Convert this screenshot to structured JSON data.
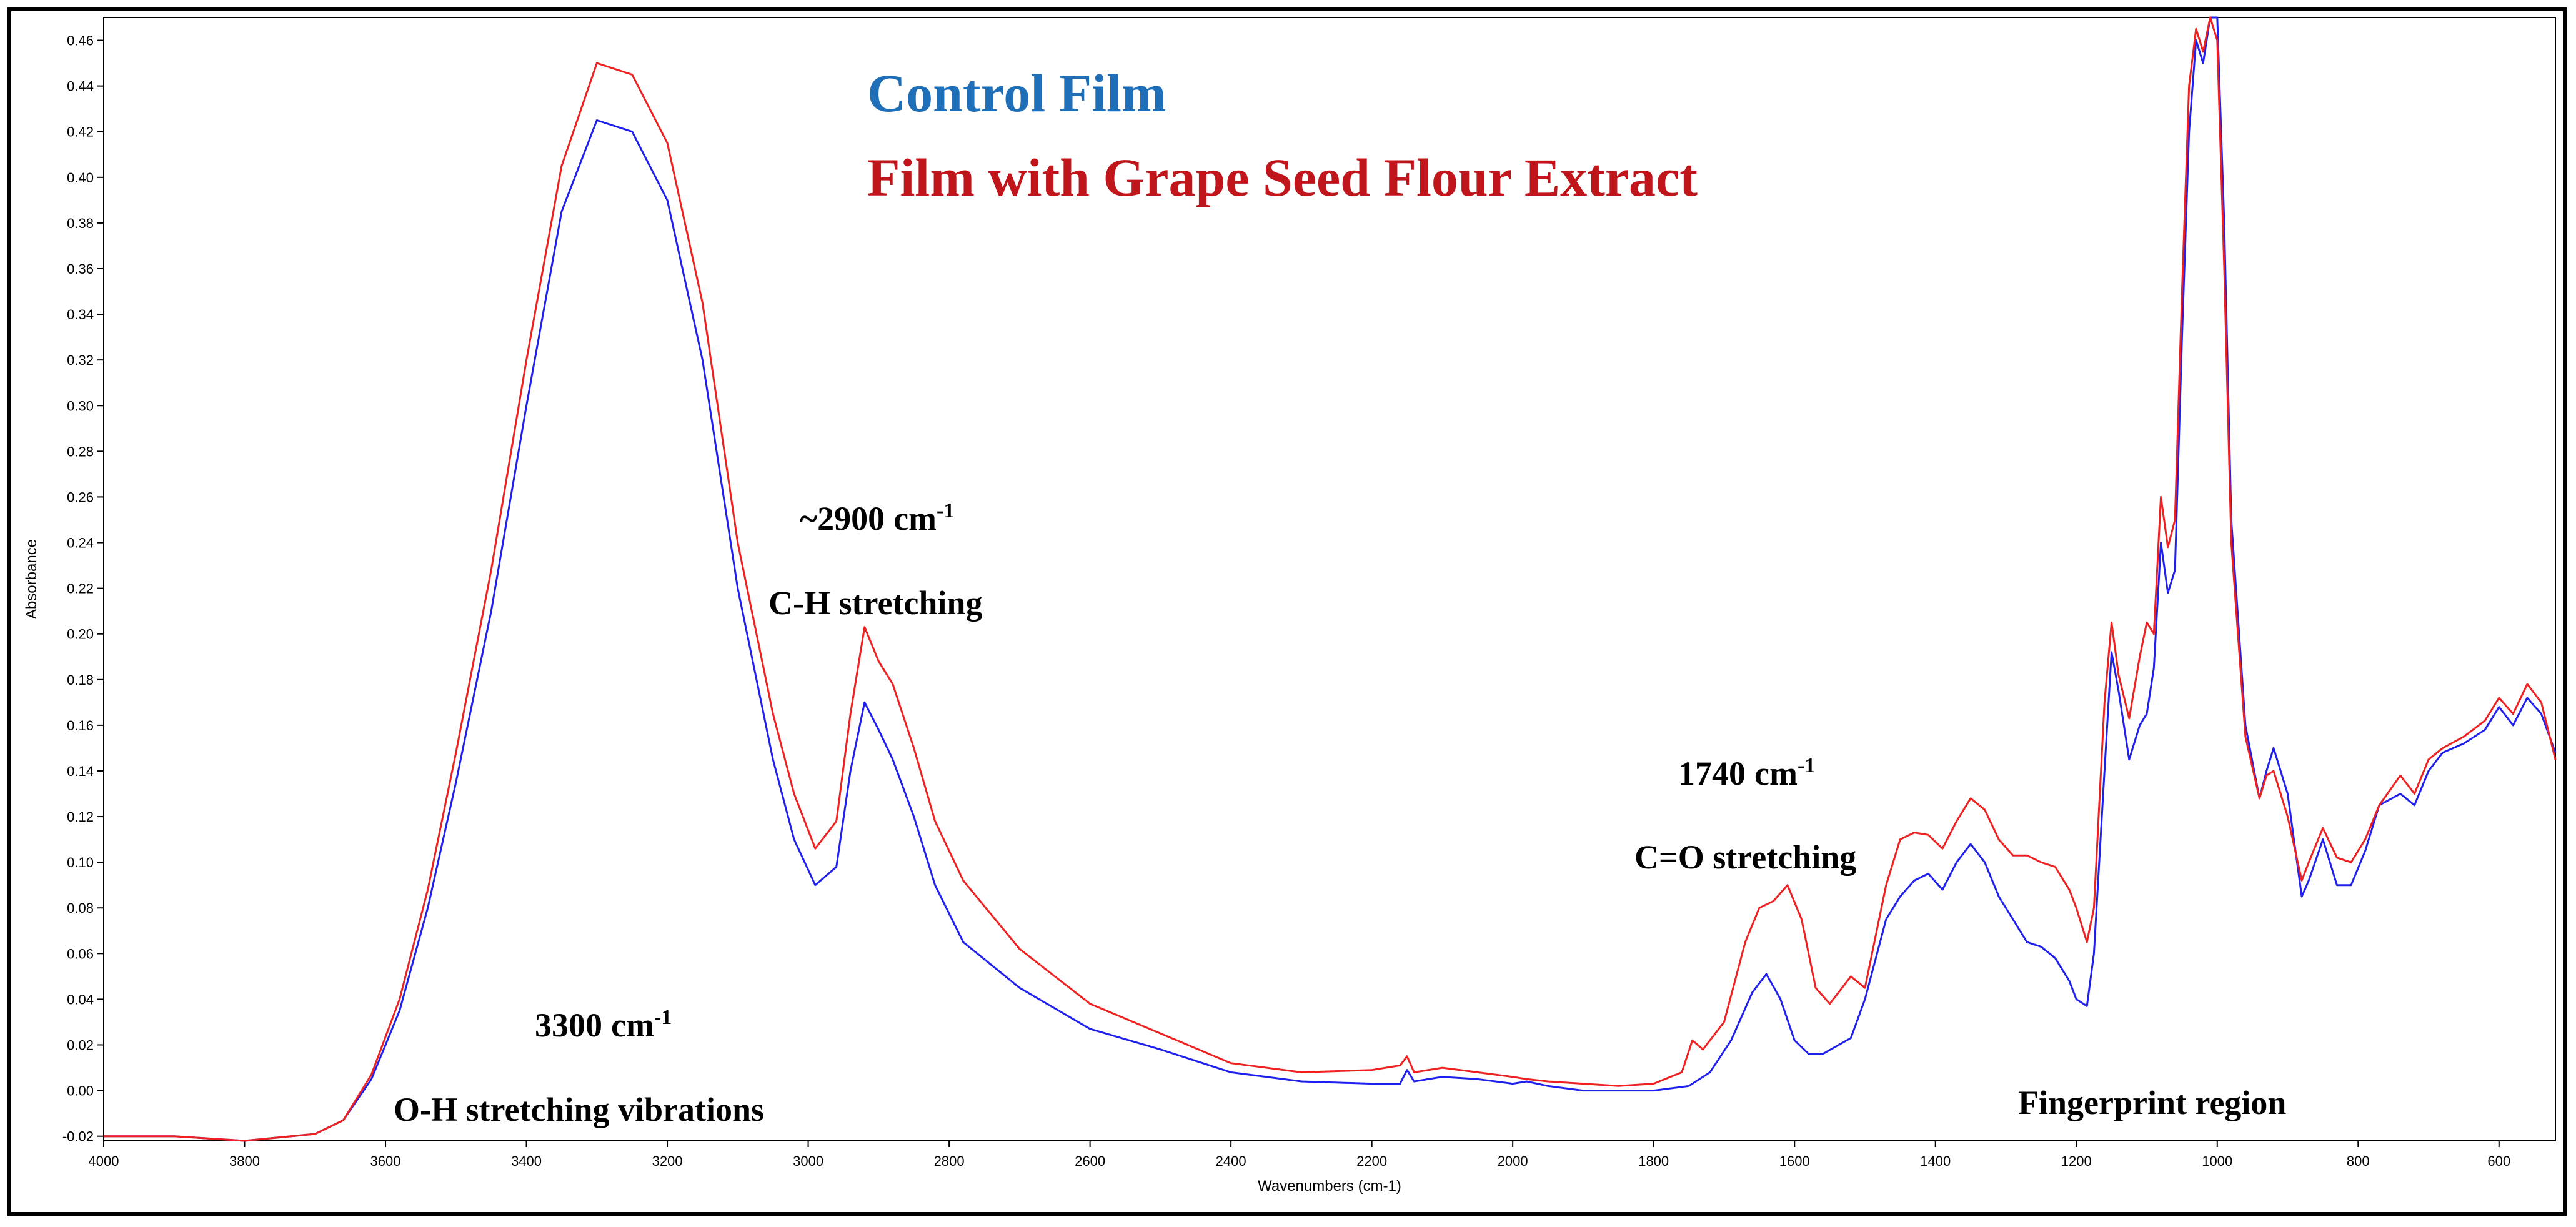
{
  "chart_data": {
    "type": "line",
    "title": "",
    "xlabel": "Wavenumbers (cm-1)",
    "ylabel": "Absorbance",
    "xlim": [
      4000,
      520
    ],
    "ylim": [
      -0.022,
      0.47
    ],
    "x_reversed": true,
    "grid": false,
    "x_ticks": [
      4000,
      3800,
      3600,
      3400,
      3200,
      3000,
      2800,
      2600,
      2400,
      2200,
      2000,
      1800,
      1600,
      1400,
      1200,
      1000,
      800,
      600
    ],
    "x_tick_labels": [
      "4000",
      "3800",
      "3600",
      "3400",
      "3200",
      "3000",
      "2800",
      "2600",
      "2400",
      "2200",
      "2000",
      "1800",
      "1600",
      "1400",
      "1200",
      "1000",
      "800",
      "600"
    ],
    "y_ticks": [
      -0.02,
      0.0,
      0.02,
      0.04,
      0.06,
      0.08,
      0.1,
      0.12,
      0.14,
      0.16,
      0.18,
      0.2,
      0.22,
      0.24,
      0.26,
      0.28,
      0.3,
      0.32,
      0.34,
      0.36,
      0.38,
      0.4,
      0.42,
      0.44,
      0.46
    ],
    "y_tick_labels": [
      "-0.02",
      "0.00",
      "0.02",
      "0.04",
      "0.06",
      "0.08",
      "0.10",
      "0.12",
      "0.14",
      "0.16",
      "0.18",
      "0.20",
      "0.22",
      "0.24",
      "0.26",
      "0.28",
      "0.30",
      "0.32",
      "0.34",
      "0.36",
      "0.38",
      "0.40",
      "0.42",
      "0.44",
      "0.46"
    ],
    "legend": [
      {
        "label": "Control Film",
        "color": "#1f6fb8"
      },
      {
        "label": "Film with Grape Seed Flour Extract",
        "color": "#c0151b"
      }
    ],
    "legend_position": "top-center",
    "series": [
      {
        "name": "Control Film",
        "color": "#2020ee",
        "x": [
          4000,
          3900,
          3800,
          3700,
          3660,
          3620,
          3580,
          3540,
          3500,
          3450,
          3400,
          3350,
          3300,
          3250,
          3200,
          3150,
          3100,
          3050,
          3020,
          2990,
          2960,
          2940,
          2920,
          2900,
          2880,
          2850,
          2820,
          2780,
          2700,
          2600,
          2500,
          2400,
          2300,
          2200,
          2160,
          2150,
          2140,
          2100,
          2050,
          2000,
          1980,
          1950,
          1900,
          1850,
          1800,
          1750,
          1720,
          1690,
          1660,
          1640,
          1620,
          1600,
          1580,
          1560,
          1520,
          1500,
          1470,
          1450,
          1430,
          1410,
          1390,
          1370,
          1350,
          1330,
          1310,
          1290,
          1270,
          1250,
          1230,
          1210,
          1200,
          1185,
          1175,
          1160,
          1150,
          1140,
          1125,
          1110,
          1100,
          1090,
          1080,
          1070,
          1060,
          1050,
          1040,
          1030,
          1020,
          1010,
          1000,
          990,
          980,
          960,
          940,
          930,
          920,
          900,
          880,
          870,
          850,
          830,
          810,
          790,
          770,
          740,
          720,
          700,
          680,
          650,
          620,
          600,
          580,
          560,
          540,
          520
        ],
        "values": [
          -0.02,
          -0.02,
          -0.022,
          -0.019,
          -0.013,
          0.005,
          0.035,
          0.08,
          0.135,
          0.21,
          0.3,
          0.385,
          0.425,
          0.42,
          0.39,
          0.32,
          0.22,
          0.145,
          0.11,
          0.09,
          0.098,
          0.14,
          0.17,
          0.158,
          0.145,
          0.12,
          0.09,
          0.065,
          0.045,
          0.027,
          0.018,
          0.008,
          0.004,
          0.003,
          0.003,
          0.009,
          0.004,
          0.006,
          0.005,
          0.003,
          0.004,
          0.002,
          0.0,
          0.0,
          0.0,
          0.002,
          0.008,
          0.022,
          0.043,
          0.051,
          0.04,
          0.022,
          0.016,
          0.016,
          0.023,
          0.04,
          0.075,
          0.085,
          0.092,
          0.095,
          0.088,
          0.1,
          0.108,
          0.1,
          0.085,
          0.075,
          0.065,
          0.063,
          0.058,
          0.048,
          0.04,
          0.037,
          0.06,
          0.14,
          0.192,
          0.175,
          0.145,
          0.16,
          0.165,
          0.185,
          0.24,
          0.218,
          0.228,
          0.33,
          0.42,
          0.46,
          0.45,
          0.47,
          0.47,
          0.38,
          0.25,
          0.16,
          0.128,
          0.14,
          0.15,
          0.13,
          0.085,
          0.092,
          0.11,
          0.09,
          0.09,
          0.105,
          0.125,
          0.13,
          0.125,
          0.14,
          0.148,
          0.152,
          0.158,
          0.168,
          0.16,
          0.172,
          0.165,
          0.148
        ]
      },
      {
        "name": "Film with Grape Seed Flour Extract",
        "color": "#ee2020",
        "x": [
          4000,
          3900,
          3800,
          3700,
          3660,
          3620,
          3580,
          3540,
          3500,
          3450,
          3400,
          3350,
          3300,
          3250,
          3200,
          3150,
          3100,
          3050,
          3020,
          2990,
          2960,
          2940,
          2920,
          2900,
          2880,
          2850,
          2820,
          2780,
          2700,
          2600,
          2500,
          2400,
          2300,
          2200,
          2160,
          2150,
          2140,
          2100,
          2050,
          2000,
          1980,
          1950,
          1900,
          1850,
          1800,
          1760,
          1745,
          1730,
          1700,
          1670,
          1650,
          1630,
          1610,
          1590,
          1570,
          1550,
          1520,
          1500,
          1470,
          1450,
          1430,
          1410,
          1390,
          1370,
          1350,
          1330,
          1310,
          1290,
          1270,
          1250,
          1230,
          1210,
          1200,
          1185,
          1175,
          1160,
          1150,
          1140,
          1125,
          1110,
          1100,
          1090,
          1080,
          1070,
          1060,
          1050,
          1040,
          1030,
          1020,
          1010,
          1000,
          990,
          980,
          960,
          940,
          930,
          920,
          900,
          880,
          870,
          850,
          830,
          810,
          790,
          770,
          740,
          720,
          700,
          680,
          650,
          620,
          600,
          580,
          560,
          540,
          520
        ],
        "values": [
          -0.02,
          -0.02,
          -0.022,
          -0.019,
          -0.013,
          0.007,
          0.04,
          0.088,
          0.148,
          0.228,
          0.32,
          0.405,
          0.45,
          0.445,
          0.415,
          0.345,
          0.24,
          0.165,
          0.13,
          0.106,
          0.118,
          0.165,
          0.203,
          0.188,
          0.178,
          0.15,
          0.118,
          0.092,
          0.062,
          0.038,
          0.025,
          0.012,
          0.008,
          0.009,
          0.011,
          0.015,
          0.008,
          0.01,
          0.008,
          0.006,
          0.005,
          0.004,
          0.003,
          0.002,
          0.003,
          0.008,
          0.022,
          0.018,
          0.03,
          0.065,
          0.08,
          0.083,
          0.09,
          0.075,
          0.045,
          0.038,
          0.05,
          0.045,
          0.09,
          0.11,
          0.113,
          0.112,
          0.106,
          0.118,
          0.128,
          0.123,
          0.11,
          0.103,
          0.103,
          0.1,
          0.098,
          0.088,
          0.08,
          0.065,
          0.08,
          0.17,
          0.205,
          0.182,
          0.163,
          0.19,
          0.205,
          0.2,
          0.26,
          0.238,
          0.25,
          0.35,
          0.44,
          0.465,
          0.455,
          0.47,
          0.46,
          0.36,
          0.24,
          0.155,
          0.128,
          0.138,
          0.14,
          0.12,
          0.092,
          0.1,
          0.115,
          0.102,
          0.1,
          0.11,
          0.125,
          0.138,
          0.13,
          0.145,
          0.15,
          0.155,
          0.162,
          0.172,
          0.165,
          0.178,
          0.17,
          0.145
        ]
      }
    ],
    "annotations": [
      {
        "id": "ch-wn",
        "number": "~2900",
        "unit": "cm",
        "sup": "-1"
      },
      {
        "id": "ch-label",
        "text": "C-H stretching"
      },
      {
        "id": "co-wn",
        "number": "1740",
        "unit": "cm",
        "sup": "-1"
      },
      {
        "id": "co-label",
        "text": "C=O stretching"
      },
      {
        "id": "oh-wn",
        "number": "3300",
        "unit": "cm",
        "sup": "-1"
      },
      {
        "id": "oh-label",
        "text": "O-H stretching vibrations"
      },
      {
        "id": "fp-label",
        "text": "Fingerprint region"
      }
    ]
  }
}
